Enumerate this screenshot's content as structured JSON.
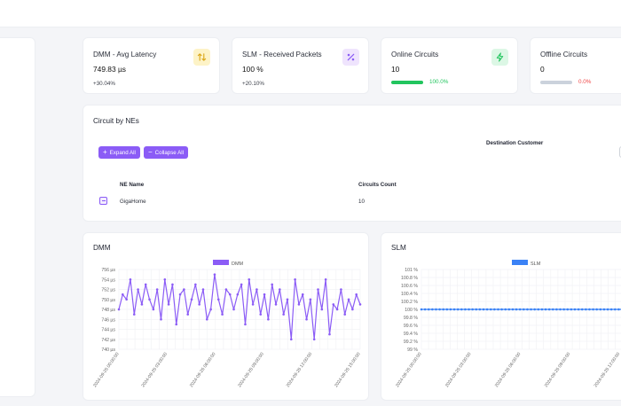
{
  "kpis": [
    {
      "title": "DMM - Avg Latency",
      "value": "749.83 µs",
      "delta": "+30.04%",
      "icon": "arrows-up-down-icon",
      "icon_bg": "#fdf3c7",
      "icon_color": "#d9a514"
    },
    {
      "title": "SLM - Received Packets",
      "value": "100 %",
      "delta": "+20.10%",
      "icon": "percent-icon",
      "icon_bg": "#efe4fd",
      "icon_color": "#8b5cf6"
    },
    {
      "title": "Online Circuits",
      "value": "10",
      "progress": 1.0,
      "progress_label": "100.0%",
      "bar_color": "#22c55e",
      "label_color": "#22c55e",
      "icon": "lightning-icon",
      "icon_bg": "#dcf7e5",
      "icon_color": "#22c55e"
    },
    {
      "title": "Offline Circuits",
      "value": "0",
      "progress": 0.0,
      "progress_label": "0.0%",
      "bar_color": "#cbd2dc",
      "label_color": "#ef4444"
    }
  ],
  "circuits": {
    "title": "Circuit by NEs",
    "expand_label": "Expand All",
    "collapse_label": "Collapse All",
    "filter_label": "Destination Customer",
    "columns": [
      "NE Name",
      "Circuits Count"
    ],
    "rows": [
      {
        "name": "GigaHome",
        "count": "10"
      }
    ]
  },
  "charts": {
    "dmm": {
      "title": "DMM",
      "legend": "DMM",
      "color": "#8b5cf6"
    },
    "slm": {
      "title": "SLM",
      "legend": "SLM",
      "color": "#3b82f6"
    }
  },
  "chart_data": [
    {
      "type": "line",
      "title": "DMM",
      "series": [
        {
          "name": "DMM",
          "values": [
            748,
            751,
            750,
            754,
            747,
            752,
            749,
            753,
            750,
            748,
            752,
            746,
            754,
            749,
            753,
            745,
            751,
            752,
            747,
            750,
            753,
            749,
            752,
            746,
            748,
            755,
            750,
            747,
            752,
            751,
            748,
            751,
            753,
            745,
            754,
            749,
            752,
            747,
            751,
            746,
            753,
            749,
            752,
            747,
            750,
            742,
            754,
            749,
            751,
            746,
            750,
            742,
            752,
            748,
            754,
            743,
            749,
            748,
            752,
            747,
            750,
            748,
            751,
            749
          ]
        }
      ],
      "yticks": [
        "756 µs",
        "754 µs",
        "752 µs",
        "750 µs",
        "748 µs",
        "746 µs",
        "744 µs",
        "742 µs",
        "740 µs"
      ],
      "ylim": [
        740,
        756
      ],
      "xticks": [
        "2024-09-25 00:00:00",
        "2024-09-25 03:00:00",
        "2024-09-25 06:00:00",
        "2024-09-25 09:00:00",
        "2024-09-25 12:00:00",
        "2024-09-25 15:00:00"
      ],
      "legend": "top"
    },
    {
      "type": "line",
      "title": "SLM",
      "series": [
        {
          "name": "SLM",
          "values": [
            100,
            100,
            100,
            100,
            100,
            100,
            100,
            100,
            100,
            100,
            100,
            100,
            100,
            100,
            100,
            100,
            100,
            100,
            100,
            100,
            100,
            100,
            100,
            100,
            100,
            100,
            100,
            100,
            100,
            100,
            100,
            100,
            100,
            100,
            100,
            100,
            100,
            100,
            100,
            100,
            100,
            100,
            100,
            100,
            100,
            100,
            100,
            100,
            100,
            100,
            100,
            100,
            100,
            100,
            100,
            100,
            100,
            100,
            100,
            100
          ]
        }
      ],
      "yticks": [
        "101 %",
        "100.8 %",
        "100.6 %",
        "100.4 %",
        "100.2 %",
        "100 %",
        "99.8 %",
        "99.6 %",
        "99.4 %",
        "99.2 %",
        "99 %"
      ],
      "ylim": [
        99,
        101
      ],
      "xticks": [
        "2024-09-25 00:00:00",
        "2024-09-25 03:00:00",
        "2024-09-25 06:00:00",
        "2024-09-25 09:00:00",
        "2024-09-25 12:00:00"
      ],
      "legend": "top"
    }
  ]
}
